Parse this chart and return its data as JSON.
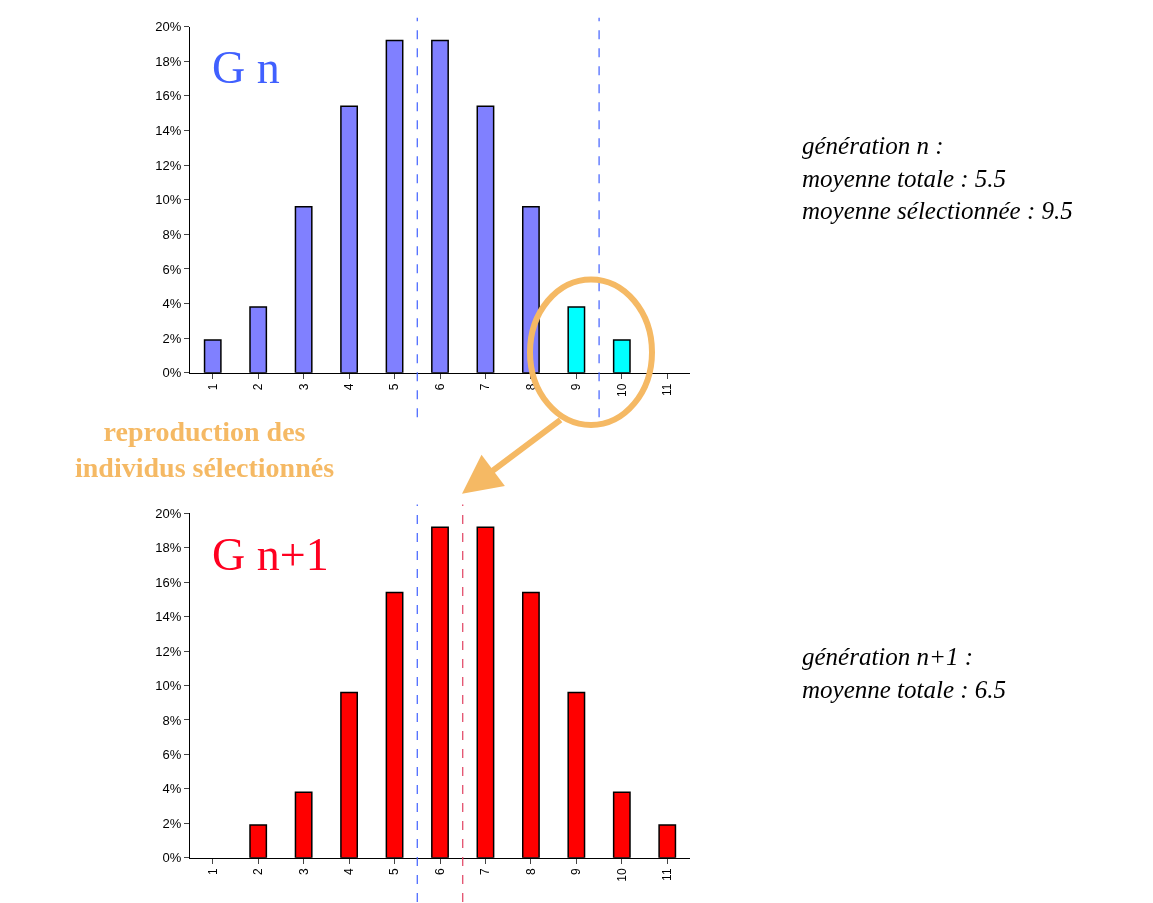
{
  "chart_data": [
    {
      "type": "bar",
      "title": "G n",
      "x": [
        1,
        2,
        3,
        4,
        5,
        6,
        7,
        8,
        9,
        10,
        11
      ],
      "values": [
        1.9,
        3.8,
        9.6,
        15.4,
        19.2,
        19.2,
        15.4,
        9.6,
        3.8,
        1.9,
        0
      ],
      "colors": [
        "#8080ff",
        "#8080ff",
        "#8080ff",
        "#8080ff",
        "#8080ff",
        "#8080ff",
        "#8080ff",
        "#8080ff",
        "#00ffff",
        "#00ffff",
        "#8080ff"
      ],
      "xlim": [
        0.5,
        11.5
      ],
      "xticks": [
        1,
        2,
        3,
        4,
        5,
        6,
        7,
        8,
        9,
        10,
        11
      ],
      "ylim": [
        0,
        20
      ],
      "yticks": [
        {
          "value": 0,
          "label": "0%"
        },
        {
          "value": 2,
          "label": "2%"
        },
        {
          "value": 4,
          "label": "4%"
        },
        {
          "value": 6,
          "label": "6%"
        },
        {
          "value": 8,
          "label": "8%"
        },
        {
          "value": 10,
          "label": "10%"
        },
        {
          "value": 12,
          "label": "12%"
        },
        {
          "value": 14,
          "label": "14%"
        },
        {
          "value": 16,
          "label": "16%"
        },
        {
          "value": 18,
          "label": "18%"
        },
        {
          "value": 20,
          "label": "20%"
        }
      ],
      "ref_lines": [
        {
          "axis": "x",
          "value": 5.5,
          "color": "#4060ff",
          "line_style": "dashed"
        },
        {
          "axis": "x",
          "value": 9.5,
          "color": "#4060ff",
          "line_style": "dashed"
        }
      ],
      "annotations": [
        "génération n :\nmoyenne totale : 5.5\nmoyenne sélectionnée : 9.5",
        "reproduction des\nindividus sélectionnés"
      ]
    },
    {
      "type": "bar",
      "title": "G n+1",
      "x": [
        1,
        2,
        3,
        4,
        5,
        6,
        7,
        8,
        9,
        10,
        11
      ],
      "values": [
        0,
        1.9,
        3.8,
        9.6,
        15.4,
        19.2,
        19.2,
        15.4,
        9.6,
        3.8,
        1.9
      ],
      "colors": [
        "#ff0000",
        "#ff0000",
        "#ff0000",
        "#ff0000",
        "#ff0000",
        "#ff0000",
        "#ff0000",
        "#ff0000",
        "#ff0000",
        "#ff0000",
        "#ff0000"
      ],
      "xlim": [
        0.5,
        11.5
      ],
      "xticks": [
        1,
        2,
        3,
        4,
        5,
        6,
        7,
        8,
        9,
        10,
        11
      ],
      "ylim": [
        0,
        20
      ],
      "yticks": [
        {
          "value": 0,
          "label": "0%"
        },
        {
          "value": 2,
          "label": "2%"
        },
        {
          "value": 4,
          "label": "4%"
        },
        {
          "value": 6,
          "label": "6%"
        },
        {
          "value": 8,
          "label": "8%"
        },
        {
          "value": 10,
          "label": "10%"
        },
        {
          "value": 12,
          "label": "12%"
        },
        {
          "value": 14,
          "label": "14%"
        },
        {
          "value": 16,
          "label": "16%"
        },
        {
          "value": 18,
          "label": "18%"
        },
        {
          "value": 20,
          "label": "20%"
        }
      ],
      "ref_lines": [
        {
          "axis": "x",
          "value": 5.5,
          "color": "#4060ff",
          "line_style": "dashed"
        },
        {
          "axis": "x",
          "value": 6.5,
          "color": "#e04060",
          "line_style": "dashed"
        }
      ],
      "annotations": [
        "génération n+1 :\nmoyenne totale : 6.5"
      ]
    }
  ]
}
